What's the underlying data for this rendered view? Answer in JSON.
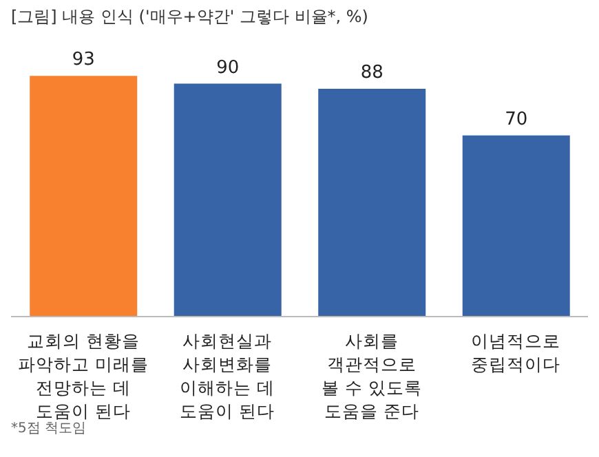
{
  "chart_data": {
    "type": "bar",
    "title": "[그림] 내용 인식 ('매우+약간' 그렇다 비율*, %)",
    "categories": [
      "교회의 현황을\n파악하고 미래를\n전망하는 데\n도움이 된다",
      "사회현실과\n사회변화를\n이해하는 데\n도움이 된다",
      "사회를\n객관적으로\n볼 수 있도록\n도움을 준다",
      "이념적으로\n중립적이다"
    ],
    "values": [
      93,
      90,
      88,
      70
    ],
    "colors": [
      "#f7812f",
      "#3764a6",
      "#3764a6",
      "#3764a6"
    ],
    "tick_labels": "x",
    "data_labels": true,
    "annotations": [
      "*5점 척도임"
    ]
  }
}
